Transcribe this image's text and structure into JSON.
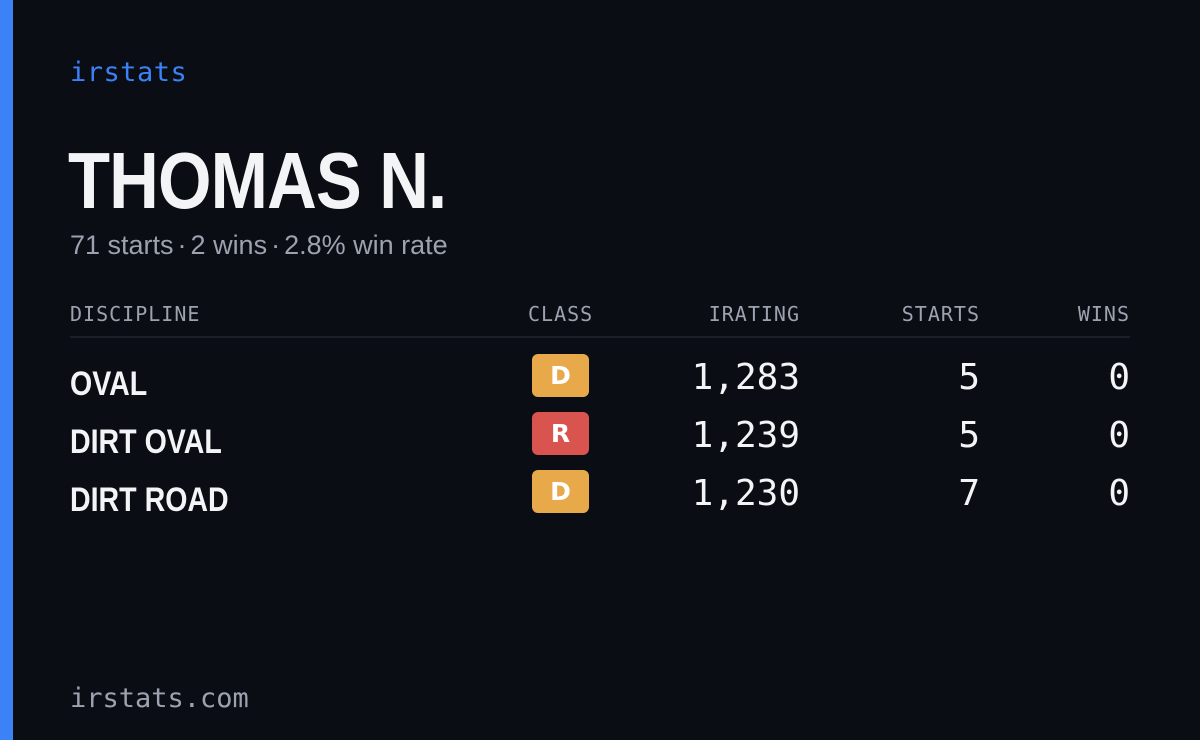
{
  "brand": "irstats",
  "driver": {
    "name": "THOMAS N.",
    "starts_text": "71 starts",
    "wins_text": "2 wins",
    "win_rate_text": "2.8% win rate",
    "separator": "·"
  },
  "table": {
    "headers": {
      "discipline": "DISCIPLINE",
      "class": "CLASS",
      "irating": "IRATING",
      "starts": "STARTS",
      "wins": "WINS"
    },
    "rows": [
      {
        "discipline": "OVAL",
        "class": "D",
        "class_color": "#e8a94a",
        "irating": "1,283",
        "starts": "5",
        "wins": "0"
      },
      {
        "discipline": "DIRT OVAL",
        "class": "R",
        "class_color": "#d9534f",
        "irating": "1,239",
        "starts": "5",
        "wins": "0"
      },
      {
        "discipline": "DIRT ROAD",
        "class": "D",
        "class_color": "#e8a94a",
        "irating": "1,230",
        "starts": "7",
        "wins": "0"
      }
    ]
  },
  "footer": {
    "site": "irstats.com"
  },
  "colors": {
    "accent": "#3b82f6",
    "background": "#0a0d14",
    "muted_text": "#9ca3af",
    "primary_text": "#f3f4f6"
  }
}
